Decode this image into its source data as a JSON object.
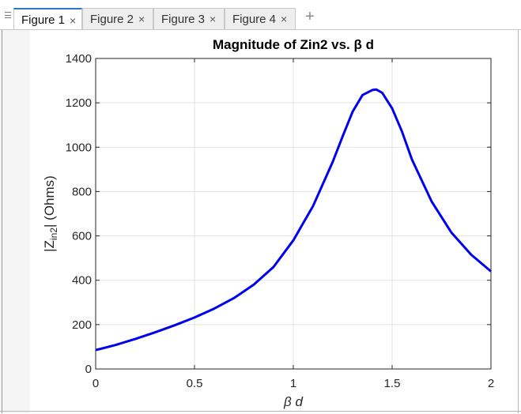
{
  "tabs": [
    {
      "label": "Figure 1",
      "close": "×",
      "active": true
    },
    {
      "label": "Figure 2",
      "close": "×",
      "active": false
    },
    {
      "label": "Figure 3",
      "close": "×",
      "active": false
    },
    {
      "label": "Figure 4",
      "close": "×",
      "active": false
    }
  ],
  "add_tab_label": "+",
  "chart_data": {
    "type": "line",
    "title": "Magnitude  of  Zin2  vs.  β  d",
    "xlabel": "β  d",
    "ylabel": {
      "prefix": "|Z",
      "subscript": "in2",
      "suffix": "|  (Ohms)"
    },
    "xlim": [
      0,
      2
    ],
    "ylim": [
      0,
      1400
    ],
    "xticks": [
      0,
      0.5,
      1,
      1.5,
      2
    ],
    "xtick_labels": [
      "0",
      "0.5",
      "1",
      "1.5",
      "2"
    ],
    "yticks": [
      0,
      200,
      400,
      600,
      800,
      1000,
      1200,
      1400
    ],
    "ytick_labels": [
      "0",
      "200",
      "400",
      "600",
      "800",
      "1000",
      "1200",
      "1400"
    ],
    "grid": true,
    "series": [
      {
        "color": "#0000ee",
        "x": [
          0,
          0.1,
          0.2,
          0.3,
          0.4,
          0.5,
          0.6,
          0.7,
          0.8,
          0.9,
          1.0,
          1.1,
          1.2,
          1.25,
          1.3,
          1.35,
          1.4,
          1.42,
          1.45,
          1.5,
          1.55,
          1.6,
          1.7,
          1.8,
          1.9,
          2.0
        ],
        "y": [
          85,
          108,
          135,
          165,
          197,
          232,
          272,
          320,
          380,
          460,
          580,
          735,
          935,
          1050,
          1160,
          1235,
          1258,
          1260,
          1245,
          1175,
          1070,
          945,
          755,
          615,
          515,
          440
        ]
      }
    ]
  }
}
